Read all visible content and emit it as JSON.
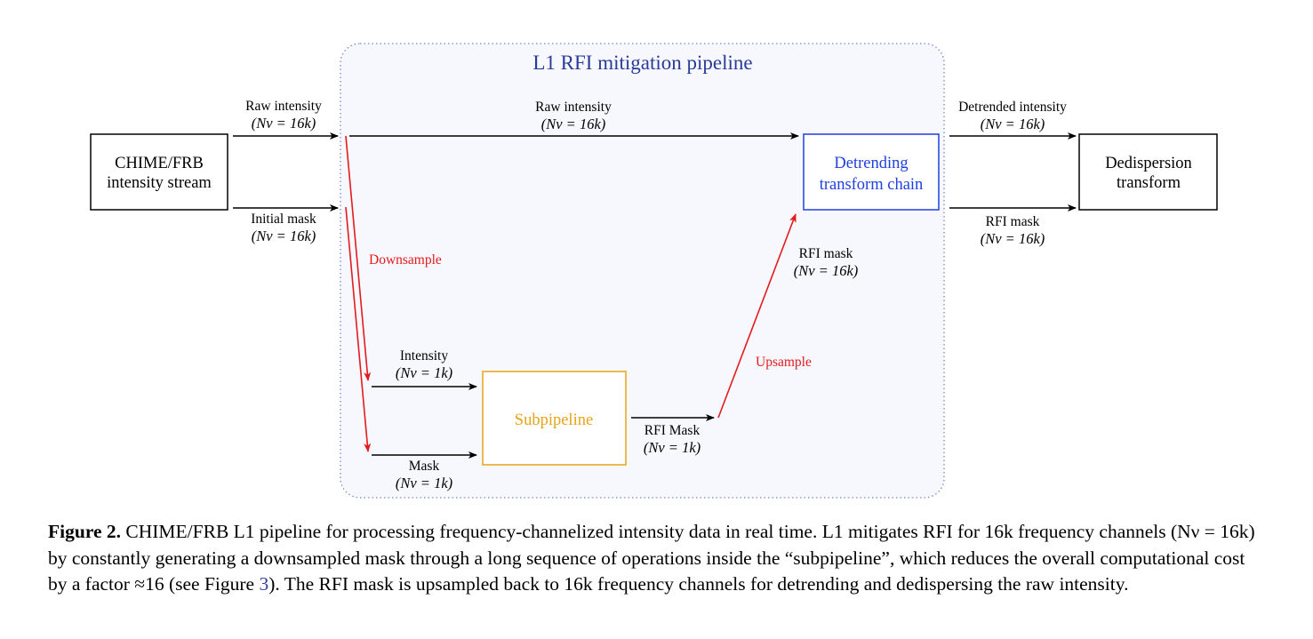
{
  "diagram": {
    "pipeline_title": "L1 RFI mitigation pipeline",
    "nodes": {
      "source": {
        "line1": "CHIME/FRB",
        "line2": "intensity stream"
      },
      "detrend": {
        "line1": "Detrending",
        "line2": "transform chain"
      },
      "subpipeline": {
        "label": "Subpipeline"
      },
      "dedispersion": {
        "line1": "Dedispersion",
        "line2": "transform"
      }
    },
    "edges": {
      "raw_in": {
        "label": "Raw intensity",
        "sub": "(Nν = 16k)"
      },
      "mask_in": {
        "label": "Initial mask",
        "sub": "(Nν = 16k)"
      },
      "raw_pass": {
        "label": "Raw intensity",
        "sub": "(Nν = 16k)"
      },
      "downsample": {
        "label": "Downsample"
      },
      "intensity_ds": {
        "label": "Intensity",
        "sub": "(Nν = 1k)"
      },
      "mask_ds": {
        "label": "Mask",
        "sub": "(Nν = 1k)"
      },
      "rfi_mask_ds": {
        "label": "RFI Mask",
        "sub": "(Nν = 1k)"
      },
      "upsample": {
        "label": "Upsample"
      },
      "rfi_mask_us": {
        "label": "RFI mask",
        "sub": "(Nν = 16k)"
      },
      "detrended_out": {
        "label": "Detrended intensity",
        "sub": "(Nν = 16k)"
      },
      "rfi_mask_out": {
        "label": "RFI mask",
        "sub": "(Nν = 16k)"
      }
    },
    "colors": {
      "black": "#000000",
      "red": "#e41a1c",
      "blue": "#1f3fe0",
      "orange": "#e8a317",
      "pipeline_bg": "#f7f8fd",
      "pipeline_border": "#7a8ac8",
      "title": "#2a3a9a"
    }
  },
  "caption": {
    "label": "Figure 2.",
    "text_part1": " CHIME/FRB L1 pipeline for processing frequency-channelized intensity data in real time. L1 mitigates RFI for 16k frequency channels (Nν = 16k) by constantly generating a downsampled mask through a long sequence of operations inside the “subpipeline”, which reduces the overall computational cost by a factor ≈16 (see Figure ",
    "figure_ref": "3",
    "text_part2": "). The RFI mask is upsampled back to 16k frequency channels for detrending and dedispersing the raw intensity."
  }
}
